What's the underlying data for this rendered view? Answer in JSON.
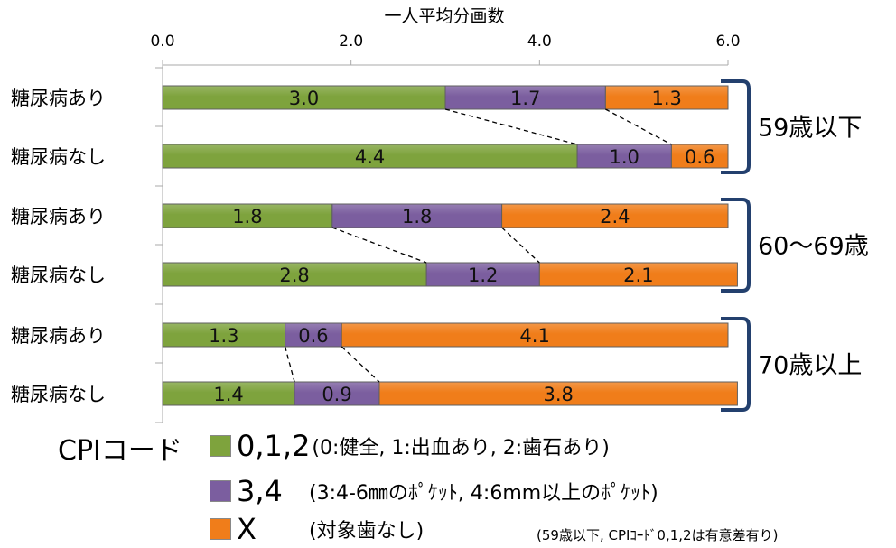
{
  "chart_data": {
    "type": "bar",
    "orientation": "horizontal",
    "stacked": true,
    "title": "一人平均分画数",
    "xlim": [
      0,
      6.0
    ],
    "xticks": [
      "0.0",
      "2.0",
      "4.0",
      "6.0"
    ],
    "categories": [
      "糖尿病あり",
      "糖尿病なし",
      "糖尿病あり",
      "糖尿病なし",
      "糖尿病あり",
      "糖尿病なし"
    ],
    "groups": [
      {
        "label": "59歳以下",
        "rows": [
          0,
          1
        ]
      },
      {
        "label": "60～69歳",
        "rows": [
          2,
          3
        ]
      },
      {
        "label": "70歳以上",
        "rows": [
          4,
          5
        ]
      }
    ],
    "series": [
      {
        "name": "0,1,2",
        "color": "#7ea33d",
        "values": [
          3.0,
          4.4,
          1.8,
          2.8,
          1.3,
          1.4
        ],
        "labels": [
          "3.0",
          "4.4",
          "1.8",
          "2.8",
          "1.3",
          "1.4"
        ]
      },
      {
        "name": "3,4",
        "color": "#7b5e9f",
        "values": [
          1.7,
          1.0,
          1.8,
          1.2,
          0.6,
          0.9
        ],
        "labels": [
          "1.7",
          "1.0",
          "1.8",
          "1.2",
          "0.6",
          "0.9"
        ]
      },
      {
        "name": "X",
        "color": "#f07d1a",
        "values": [
          1.3,
          0.6,
          2.4,
          2.1,
          4.1,
          3.8
        ],
        "labels": [
          "1.3",
          "0.6",
          "2.4",
          "2.1",
          "4.1",
          "3.8"
        ]
      }
    ],
    "legend_placement": "bottom"
  },
  "legend": {
    "title": "CPIコード",
    "items": [
      {
        "code": "0,1,2",
        "desc": "(0:健全, 1:出血あり, 2:歯石あり)",
        "color": "#7ea33d"
      },
      {
        "code": "3,4",
        "desc": "(3:4-6㎜のﾎﾟｹｯﾄ, 4:6mm以上のﾎﾟｹｯﾄ)",
        "color": "#7b5e9f"
      },
      {
        "code": "X",
        "desc": "(対象歯なし)",
        "color": "#f07d1a"
      }
    ]
  },
  "note": "(59歳以下, CPIｺｰﾄﾞ0,1,2は有意差有り)"
}
